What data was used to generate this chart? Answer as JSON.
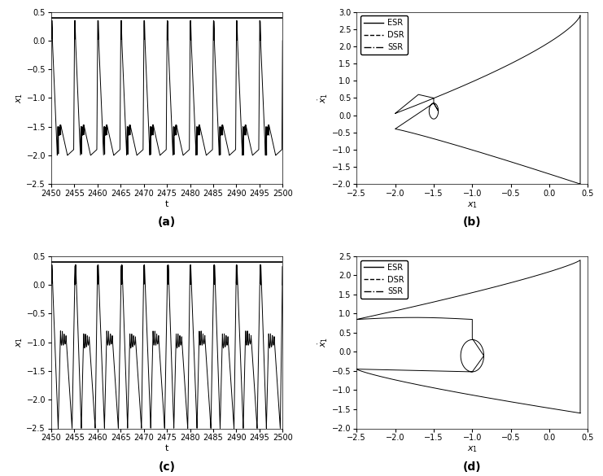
{
  "fig_width": 7.41,
  "fig_height": 5.85,
  "dpi": 100,
  "background_color": "#ffffff",
  "line_color": "#000000",
  "line_width": 0.7,
  "subplot_labels": [
    "(a)",
    "(b)",
    "(c)",
    "(d)"
  ],
  "subplot_label_fontsize": 10,
  "subplot_label_fontweight": "bold",
  "ax_a": {
    "xlabel": "t",
    "ylabel": "$x_1$",
    "xlim": [
      2450,
      2500
    ],
    "ylim": [
      -2.5,
      0.5
    ],
    "xticks": [
      2450,
      2455,
      2460,
      2465,
      2470,
      2475,
      2480,
      2485,
      2490,
      2495,
      2500
    ],
    "yticks": [
      -2.5,
      -2.0,
      -1.5,
      -1.0,
      -0.5,
      0.0,
      0.5
    ],
    "hline_y": 0.4,
    "tick_fontsize": 7
  },
  "ax_b": {
    "xlabel": "$x_1$",
    "ylabel": "$\\dot{x}_1$",
    "xlim": [
      -2.5,
      0.5
    ],
    "ylim": [
      -2.0,
      3.0
    ],
    "xticks": [
      -2.5,
      -2.0,
      -1.5,
      -1.0,
      -0.5,
      0.0,
      0.5
    ],
    "yticks": [
      -2.0,
      -1.5,
      -1.0,
      -0.5,
      0.0,
      0.5,
      1.0,
      1.5,
      2.0,
      2.5,
      3.0
    ],
    "legend": [
      "ESR",
      "DSR",
      "SSR"
    ],
    "tick_fontsize": 7
  },
  "ax_c": {
    "xlabel": "t",
    "ylabel": "$x_1$",
    "xlim": [
      2450,
      2500
    ],
    "ylim": [
      -2.5,
      0.5
    ],
    "xticks": [
      2450,
      2455,
      2460,
      2465,
      2470,
      2475,
      2480,
      2485,
      2490,
      2495,
      2500
    ],
    "yticks": [
      -2.5,
      -2.0,
      -1.5,
      -1.0,
      -0.5,
      0.0,
      0.5
    ],
    "hline_y": 0.4,
    "tick_fontsize": 7
  },
  "ax_d": {
    "xlabel": "$x_1$",
    "ylabel": "$\\dot{x}_1$",
    "xlim": [
      -2.5,
      0.5
    ],
    "ylim": [
      -2.0,
      2.5
    ],
    "xticks": [
      -2.5,
      -2.0,
      -1.5,
      -1.0,
      -0.5,
      0.0,
      0.5
    ],
    "yticks": [
      -2.0,
      -1.5,
      -1.0,
      -0.5,
      0.0,
      0.5,
      1.0,
      1.5,
      2.0,
      2.5
    ],
    "legend": [
      "ESR",
      "DSR",
      "SSR"
    ],
    "tick_fontsize": 7
  }
}
